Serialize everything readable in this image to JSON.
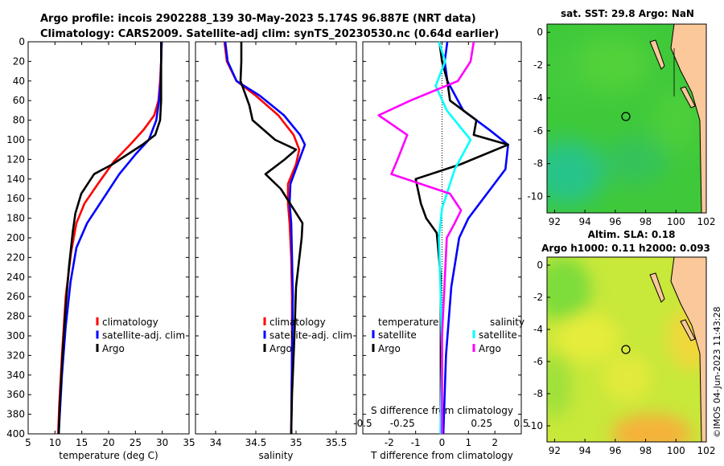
{
  "header": {
    "line1": "Argo profile: incois 2902288_139 30-May-2023 5.174S 96.887E (NRT data)",
    "line2": "Climatology: CARS2009. Satellite-adj clim: synTS_20230530.nc (0.64d earlier)"
  },
  "timestamp": "©IMOS 04-Jun-2023 11:43:28",
  "colors": {
    "climatology": "#ff0000",
    "satellite": "#0000ff",
    "argo": "#000000",
    "satellite_s": "#00ffff",
    "argo_s": "#ff00ff"
  },
  "chart_data": [
    {
      "type": "line",
      "id": "temperature",
      "xlabel": "temperature (deg C)",
      "ylabel": "",
      "xlim": [
        5,
        35
      ],
      "ylim": [
        400,
        0
      ],
      "xticks": [
        "5",
        "10",
        "15",
        "20",
        "25",
        "30",
        "35"
      ],
      "yticks": [
        "0",
        "20",
        "40",
        "60",
        "80",
        "100",
        "120",
        "140",
        "160",
        "180",
        "200",
        "220",
        "240",
        "260",
        "280",
        "300",
        "320",
        "340",
        "360",
        "380",
        "400"
      ],
      "legend": [
        "climatology",
        "satellite-adj. clim",
        "Argo"
      ],
      "series": [
        {
          "name": "climatology",
          "color": "#ff0000",
          "points": [
            [
              29.9,
              0
            ],
            [
              29.8,
              20
            ],
            [
              29.6,
              40
            ],
            [
              29.3,
              60
            ],
            [
              28.5,
              75
            ],
            [
              26.5,
              90
            ],
            [
              24,
              105
            ],
            [
              21,
              122
            ],
            [
              18,
              145
            ],
            [
              15.5,
              165
            ],
            [
              14,
              185
            ],
            [
              13,
              215
            ],
            [
              12,
              260
            ],
            [
              11.3,
              320
            ],
            [
              10.8,
              370
            ],
            [
              10.6,
              400
            ]
          ]
        },
        {
          "name": "satellite-adj. clim",
          "color": "#0000ff",
          "points": [
            [
              29.9,
              0
            ],
            [
              29.8,
              20
            ],
            [
              29.7,
              40
            ],
            [
              29.4,
              60
            ],
            [
              28.9,
              80
            ],
            [
              27.5,
              100
            ],
            [
              25,
              115
            ],
            [
              22,
              135
            ],
            [
              19,
              160
            ],
            [
              16,
              185
            ],
            [
              14,
              210
            ],
            [
              12.9,
              245
            ],
            [
              12,
              290
            ],
            [
              11.3,
              340
            ],
            [
              10.9,
              380
            ],
            [
              10.7,
              400
            ]
          ]
        },
        {
          "name": "Argo",
          "color": "#000000",
          "points": [
            [
              29.8,
              0
            ],
            [
              29.8,
              20
            ],
            [
              29.8,
              40
            ],
            [
              29.8,
              60
            ],
            [
              29.6,
              80
            ],
            [
              28.7,
              95
            ],
            [
              26.3,
              105
            ],
            [
              20.7,
              125
            ],
            [
              17.3,
              135
            ],
            [
              14.9,
              155
            ],
            [
              13.8,
              175
            ],
            [
              13.3,
              195
            ],
            [
              12.6,
              230
            ],
            [
              12,
              270
            ],
            [
              11.4,
              320
            ],
            [
              10.9,
              370
            ],
            [
              10.7,
              400
            ]
          ]
        }
      ]
    },
    {
      "type": "line",
      "id": "salinity",
      "xlabel": "salinity",
      "ylabel": "",
      "xlim": [
        33.75,
        35.75
      ],
      "ylim": [
        400,
        0
      ],
      "xticks": [
        "34",
        "34.5",
        "35",
        "35.5"
      ],
      "legend": [
        "climatology",
        "satellite-adj. clim",
        "Argo"
      ],
      "series": [
        {
          "name": "climatology",
          "color": "#ff0000",
          "points": [
            [
              34.11,
              0
            ],
            [
              34.14,
              20
            ],
            [
              34.26,
              40
            ],
            [
              34.5,
              55
            ],
            [
              34.78,
              75
            ],
            [
              34.97,
              95
            ],
            [
              35.04,
              110
            ],
            [
              35.0,
              125
            ],
            [
              34.9,
              145
            ],
            [
              34.9,
              165
            ],
            [
              34.92,
              185
            ],
            [
              34.94,
              220
            ],
            [
              34.95,
              260
            ],
            [
              34.95,
              320
            ],
            [
              34.94,
              400
            ]
          ]
        },
        {
          "name": "satellite-adj. clim",
          "color": "#0000ff",
          "points": [
            [
              34.12,
              0
            ],
            [
              34.15,
              20
            ],
            [
              34.26,
              40
            ],
            [
              34.55,
              55
            ],
            [
              34.85,
              75
            ],
            [
              35.05,
              95
            ],
            [
              35.11,
              105
            ],
            [
              35.02,
              125
            ],
            [
              34.93,
              145
            ],
            [
              34.92,
              165
            ],
            [
              34.94,
              185
            ],
            [
              34.95,
              220
            ],
            [
              34.96,
              260
            ],
            [
              34.95,
              320
            ],
            [
              34.94,
              400
            ]
          ]
        },
        {
          "name": "Argo",
          "color": "#000000",
          "points": [
            [
              34.32,
              0
            ],
            [
              34.32,
              20
            ],
            [
              34.31,
              40
            ],
            [
              34.42,
              65
            ],
            [
              34.46,
              80
            ],
            [
              34.74,
              100
            ],
            [
              35.0,
              110
            ],
            [
              34.86,
              120
            ],
            [
              34.62,
              135
            ],
            [
              34.81,
              150
            ],
            [
              34.98,
              172
            ],
            [
              35.08,
              185
            ],
            [
              35.07,
              200
            ],
            [
              35.0,
              250
            ],
            [
              34.98,
              300
            ],
            [
              34.95,
              360
            ],
            [
              34.94,
              400
            ]
          ]
        }
      ]
    },
    {
      "type": "line",
      "id": "difference",
      "xlabel": "T difference from climatology",
      "xlabel2": "S difference from climatology",
      "xlim": [
        -3,
        3
      ],
      "ylim": [
        400,
        0
      ],
      "xticks": [
        "-2",
        "-1",
        "0",
        "1",
        "2"
      ],
      "xticks2": [
        "-0.5",
        "-0.25",
        "0",
        "0.25",
        "0.5"
      ],
      "legend_temperature_title": "temperature",
      "legend_salinity_title": "salinity",
      "legend": [
        "satellite",
        "Argo",
        "satellite",
        "Argo"
      ],
      "series": [
        {
          "name": "T satellite",
          "color": "#0000ff",
          "points": [
            [
              0.2,
              0
            ],
            [
              0.1,
              20
            ],
            [
              0.2,
              40
            ],
            [
              0.8,
              70
            ],
            [
              1.8,
              90
            ],
            [
              2.5,
              105
            ],
            [
              2.4,
              130
            ],
            [
              1.7,
              155
            ],
            [
              1.0,
              180
            ],
            [
              0.65,
              200
            ],
            [
              0.35,
              250
            ],
            [
              0.15,
              320
            ],
            [
              0.05,
              400
            ]
          ]
        },
        {
          "name": "T Argo",
          "color": "#000000",
          "points": [
            [
              -0.1,
              0
            ],
            [
              0.0,
              20
            ],
            [
              0.2,
              40
            ],
            [
              0.3,
              60
            ],
            [
              1.3,
              80
            ],
            [
              1.2,
              95
            ],
            [
              2.5,
              105
            ],
            [
              0.7,
              125
            ],
            [
              -1.0,
              140
            ],
            [
              -0.8,
              165
            ],
            [
              -0.6,
              180
            ],
            [
              -0.2,
              195
            ],
            [
              -0.05,
              240
            ],
            [
              -0.05,
              320
            ],
            [
              -0.05,
              400
            ]
          ]
        },
        {
          "name": "S satellite",
          "color": "#00ffff",
          "points": [
            [
              -0.02,
              0
            ],
            [
              0.02,
              20
            ],
            [
              -0.04,
              45
            ],
            [
              0.03,
              70
            ],
            [
              0.18,
              100
            ],
            [
              0.08,
              130
            ],
            [
              0.0,
              170
            ],
            [
              -0.02,
              200
            ],
            [
              -0.01,
              250
            ],
            [
              0.0,
              320
            ],
            [
              -0.01,
              400
            ]
          ]
        },
        {
          "name": "S Argo",
          "color": "#ff00ff",
          "points": [
            [
              0.2,
              0
            ],
            [
              0.18,
              20
            ],
            [
              0.1,
              40
            ],
            [
              -0.2,
              60
            ],
            [
              -0.4,
              75
            ],
            [
              -0.22,
              95
            ],
            [
              -0.28,
              120
            ],
            [
              -0.32,
              135
            ],
            [
              0.05,
              155
            ],
            [
              0.12,
              172
            ],
            [
              0.08,
              185
            ],
            [
              0.03,
              200
            ],
            [
              0.0,
              300
            ],
            [
              0.0,
              400
            ]
          ]
        }
      ]
    },
    {
      "type": "heatmap",
      "id": "sst-map",
      "title": "sat. SST: 29.8 Argo: NaN",
      "xlim": [
        91.5,
        102
      ],
      "ylim": [
        -11,
        0.5
      ],
      "xticks": [
        "92",
        "94",
        "96",
        "98",
        "100",
        "102"
      ],
      "yticks": [
        "0",
        "-2",
        "-4",
        "-6",
        "-8",
        "-10"
      ],
      "argo_position": [
        96.887,
        -5.174
      ]
    },
    {
      "type": "heatmap",
      "id": "sla-map",
      "title": "Altim. SLA: 0.18",
      "subtitle": "Argo h1000: 0.11 h2000: 0.093",
      "xlim": [
        91.5,
        102
      ],
      "ylim": [
        -11,
        0.5
      ],
      "xticks": [
        "92",
        "94",
        "96",
        "98",
        "100",
        "102"
      ],
      "yticks": [
        "0",
        "-2",
        "-4",
        "-6",
        "-8",
        "-10"
      ],
      "argo_position": [
        96.887,
        -5.174
      ]
    }
  ]
}
